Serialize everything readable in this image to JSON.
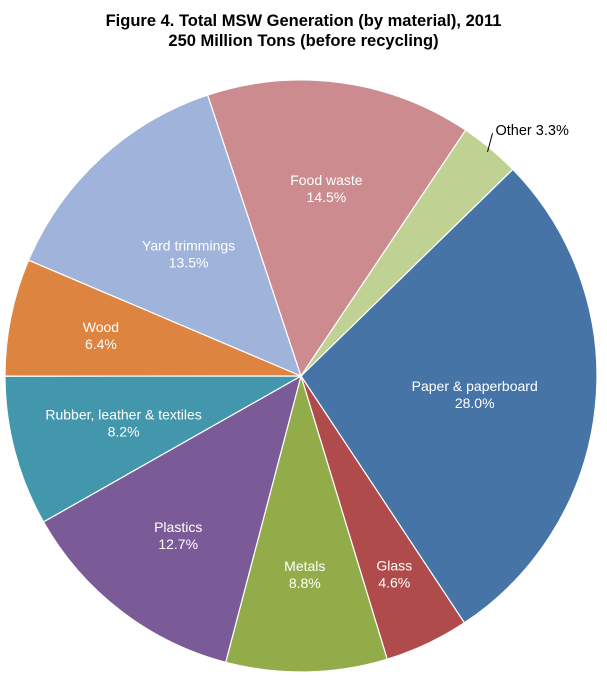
{
  "title": {
    "line1": "Figure 4. Total MSW Generation (by material), 2011",
    "line2": "250 Million Tons (before recycling)"
  },
  "chart_data": {
    "type": "pie",
    "title": "Figure 4. Total MSW Generation (by material), 2011",
    "subtitle": "250 Million Tons (before recycling)",
    "total_label": "250 Million Tons (before recycling)",
    "units": "percent",
    "direction": "clockwise",
    "start_angle_deg": 45.7,
    "legend": "none",
    "slices": [
      {
        "label": "Paper & paperboard",
        "value": 28.0,
        "display": "28.0%",
        "color": "#4674a7",
        "label_color": "#ffffff",
        "label_radius": 0.59,
        "label_external": false
      },
      {
        "label": "Glass",
        "value": 4.6,
        "display": "4.6%",
        "color": "#af4b4b",
        "label_color": "#ffffff",
        "label_radius": 0.74,
        "label_external": false
      },
      {
        "label": "Metals",
        "value": 8.8,
        "display": "8.8%",
        "color": "#93ac4a",
        "label_color": "#ffffff",
        "label_radius": 0.67,
        "label_external": false
      },
      {
        "label": "Plastics",
        "value": 12.7,
        "display": "12.7%",
        "color": "#7b5a98",
        "label_color": "#ffffff",
        "label_radius": 0.68,
        "label_external": false
      },
      {
        "label": "Rubber, leather & textiles",
        "value": 8.2,
        "display": "8.2%",
        "color": "#4297ad",
        "label_color": "#ffffff",
        "label_radius": 0.62,
        "label_external": false
      },
      {
        "label": "Wood",
        "value": 6.4,
        "display": "6.4%",
        "color": "#dd8440",
        "label_color": "#ffffff",
        "label_radius": 0.69,
        "label_external": false
      },
      {
        "label": "Yard trimmings",
        "value": 13.5,
        "display": "13.5%",
        "color": "#a0b3da",
        "label_color": "#ffffff",
        "label_radius": 0.56,
        "label_external": false
      },
      {
        "label": "Food waste",
        "value": 14.5,
        "display": "14.5%",
        "color": "#cc8b8f",
        "label_color": "#ffffff",
        "label_radius": 0.64,
        "label_external": false
      },
      {
        "label": "Other",
        "value": 3.3,
        "display": "3.3%",
        "color": "#bfd193",
        "label_color": "#000000",
        "label_radius": 1.05,
        "label_external": true
      }
    ]
  }
}
